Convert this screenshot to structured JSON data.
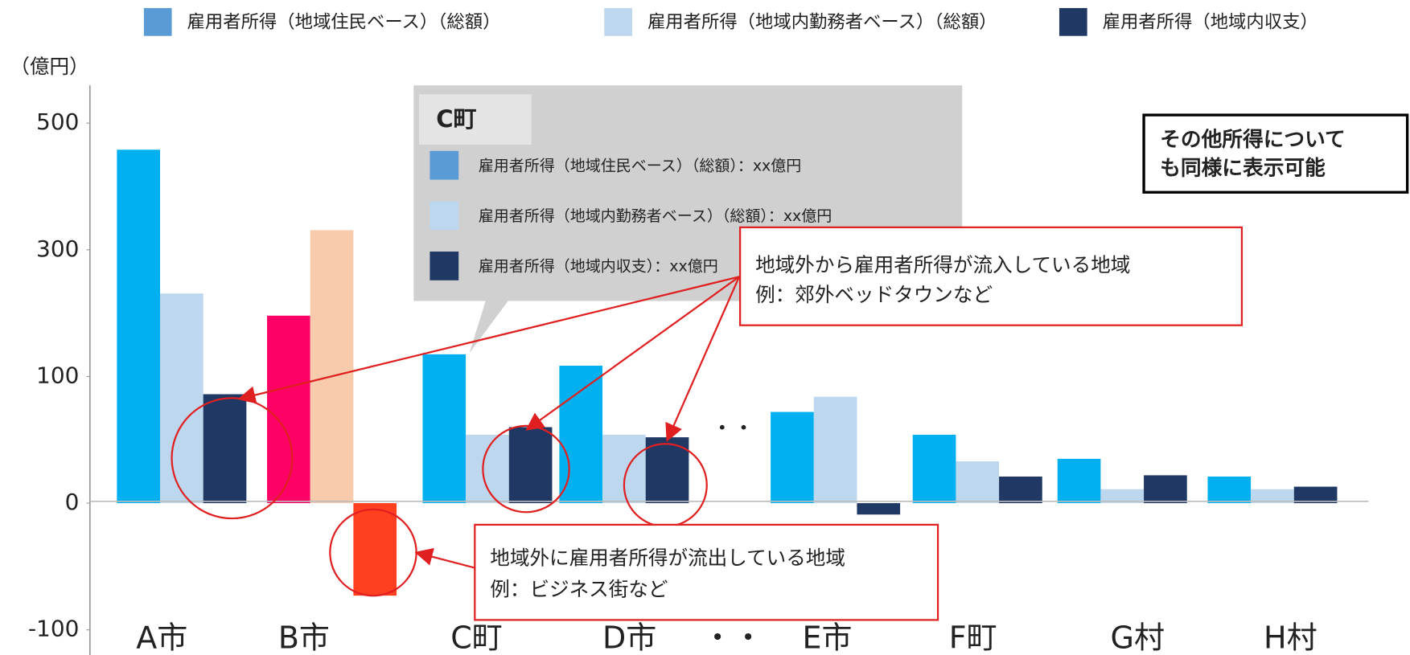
{
  "chart_data": {
    "type": "bar",
    "y_label": "（億円）",
    "categories": [
      "A市",
      "B市",
      "C町",
      "D市",
      "・・",
      "E市",
      "F町",
      "G村",
      "H村"
    ],
    "series": [
      {
        "name": "雇用者所得（地域住民ベース）（総額）",
        "color": "#5b9bd5",
        "bar_colors": [
          "#00b0f0",
          "#ff0066",
          "#00b0f0",
          "#00b0f0",
          null,
          "#00b0f0",
          "#00b0f0",
          "#00b0f0",
          "#00b0f0"
        ],
        "values": [
          458,
          196,
          135,
          117,
          null,
          72,
          54,
          35,
          21
        ]
      },
      {
        "name": "雇用者所得（地域内勤務者ベース）（総額）",
        "color": "#bdd7ee",
        "bar_colors": [
          "#bdd7ee",
          "#f8cbad",
          "#bdd7ee",
          "#bdd7ee",
          null,
          "#bdd7ee",
          "#bdd7ee",
          "#bdd7ee",
          "#bdd7ee"
        ],
        "values": [
          231,
          331,
          54,
          54,
          null,
          84,
          33,
          11,
          11
        ]
      },
      {
        "name": "雇用者所得（地域内収支）",
        "color": "#1f3864",
        "bar_colors": [
          "#1f3864",
          "#ff4020",
          "#1f3864",
          "#1f3864",
          null,
          "#1f3864",
          "#1f3864",
          "#1f3864",
          "#1f3864"
        ],
        "values": [
          86,
          -73,
          60,
          52,
          null,
          -9,
          21,
          22,
          13
        ]
      }
    ],
    "ylim": [
      -100,
      500
    ],
    "yticks": [
      500,
      300,
      100,
      0,
      -100
    ],
    "tooltip": {
      "title": "C町",
      "items": [
        "雇用者所得（地域住民ベース）（総額）：xx億円",
        "雇用者所得（地域内勤務者ベース）（総額）：xx億円",
        "雇用者所得（地域内収支）：xx億円"
      ]
    },
    "annotations": {
      "other_income": [
        "その他所得について",
        "も同様に表示可能"
      ],
      "inflow": [
        "地域外から雇用者所得が流入している地域",
        "例：郊外ベッドタウンなど"
      ],
      "outflow": [
        "地域外に雇用者所得が流出している地域",
        "例：ビジネス街など"
      ]
    }
  }
}
